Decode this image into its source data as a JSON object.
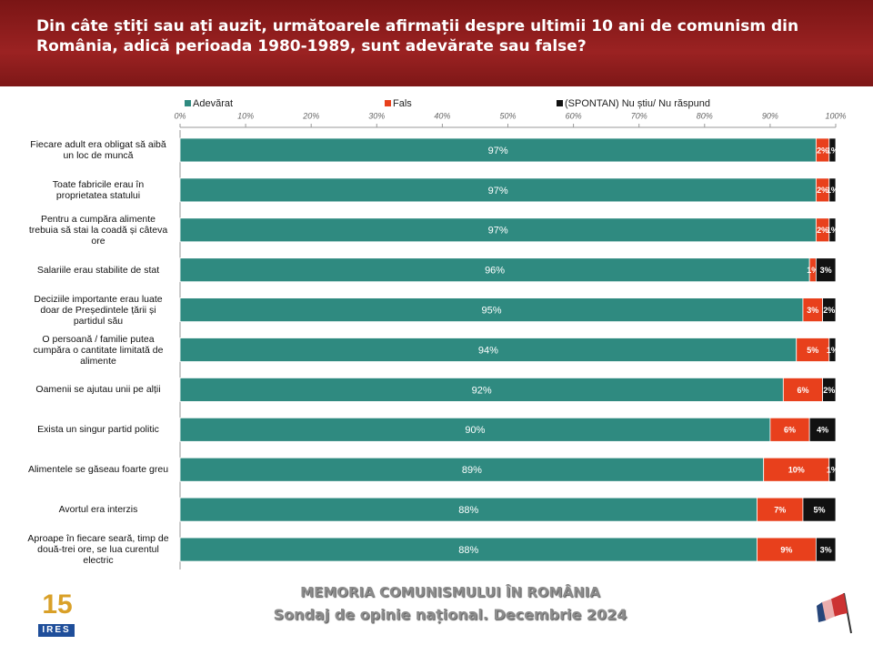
{
  "header": {
    "title": "Din câte știți sau ați auzit, următoarele afirmații despre ultimii 10 ani de comunism din România, adică perioada 1980-1989, sunt adevărate sau false?"
  },
  "chart_data": {
    "type": "stacked-bar-horizontal",
    "categories": [
      "Fiecare adult era obligat să aibă un loc de muncă",
      "Toate fabricile erau în proprietatea statului",
      "Pentru a cumpăra alimente trebuia să stai la coadă și câteva ore",
      "Salariile erau stabilite de stat",
      "Deciziile importante erau luate doar de Președintele țării și partidul său",
      "O persoană / familie putea cumpăra o cantitate limitată de alimente",
      "Oamenii se ajutau unii pe alții",
      "Exista un singur partid politic",
      "Alimentele se găseau foarte greu",
      "Avortul era interzis",
      "Aproape în fiecare seară, timp de două-trei ore, se lua curentul electric"
    ],
    "series": [
      {
        "name": "Adevărat",
        "color": "#2f8a80",
        "values": [
          97,
          97,
          97,
          96,
          95,
          94,
          92,
          90,
          89,
          88,
          88
        ],
        "value_labels": [
          "97%",
          "97%",
          "97%",
          "96%",
          "95%",
          "94%",
          "92%",
          "90%",
          "89%",
          "88%",
          "88%"
        ]
      },
      {
        "name": "Fals",
        "color": "#e8401c",
        "values": [
          2,
          2,
          2,
          1,
          3,
          5,
          6,
          6,
          10,
          7,
          9
        ],
        "value_labels": [
          "2%",
          "2%",
          "2%",
          "1%",
          "3%",
          "5%",
          "6%",
          "6%",
          "10%",
          "7%",
          "9%"
        ]
      },
      {
        "name": "(SPONTAN) Nu știu/ Nu răspund",
        "color": "#111111",
        "values": [
          1,
          1,
          1,
          3,
          2,
          1,
          2,
          4,
          1,
          5,
          3
        ],
        "value_labels": [
          "1%",
          "1%",
          "1%",
          "3%",
          "2%",
          "1%",
          "2%",
          "4%",
          "1%",
          "5%",
          "3%"
        ]
      }
    ],
    "xlim": [
      0,
      100
    ],
    "xticks": [
      {
        "value": 0,
        "label": "0%"
      },
      {
        "value": 10,
        "label": "10%"
      },
      {
        "value": 20,
        "label": "20%"
      },
      {
        "value": 30,
        "label": "30%"
      },
      {
        "value": 40,
        "label": "40%"
      },
      {
        "value": 50,
        "label": "50%"
      },
      {
        "value": 60,
        "label": "60%"
      },
      {
        "value": 70,
        "label": "70%"
      },
      {
        "value": 80,
        "label": "80%"
      },
      {
        "value": 90,
        "label": "90%"
      },
      {
        "value": 100,
        "label": "100%"
      }
    ],
    "legend": "top"
  },
  "footer": {
    "line1": "MEMORIA COMUNISMULUI ÎN ROMÂNIA",
    "line2": "Sondaj de opinie național. Decembrie 2024"
  },
  "logo": {
    "number": "15",
    "text": "IRES"
  }
}
